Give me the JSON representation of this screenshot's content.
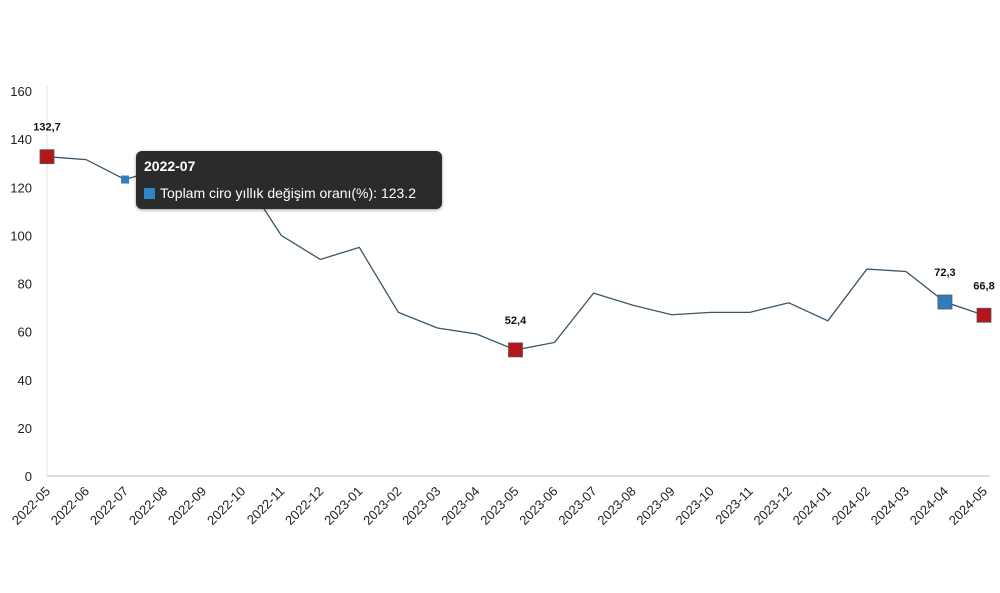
{
  "chart_data": {
    "type": "line",
    "title": "",
    "xlabel": "",
    "ylabel": "",
    "ylim": [
      0,
      160
    ],
    "yticks": [
      0,
      20,
      40,
      60,
      80,
      100,
      120,
      140,
      160
    ],
    "categories": [
      "2022-05",
      "2022-06",
      "2022-07",
      "2022-08",
      "2022-09",
      "2022-10",
      "2022-11",
      "2022-12",
      "2023-01",
      "2023-02",
      "2023-03",
      "2023-04",
      "2023-05",
      "2023-06",
      "2023-07",
      "2023-08",
      "2023-09",
      "2023-10",
      "2023-11",
      "2023-12",
      "2024-01",
      "2024-02",
      "2024-03",
      "2024-04",
      "2024-05"
    ],
    "series": [
      {
        "name": "Toplam ciro yıllık değişim oranı(%)",
        "values": [
          132.7,
          131.5,
          123.2,
          128,
          133.5,
          125,
          100,
          90,
          95,
          68,
          61.5,
          59,
          52.4,
          55.5,
          76,
          71,
          67,
          68,
          68,
          72,
          64.5,
          86,
          85,
          72.3,
          66.8
        ]
      }
    ],
    "highlighted_points": [
      {
        "index": 0,
        "label": "132,7",
        "color": "#b5161b"
      },
      {
        "index": 12,
        "label": "52,4",
        "color": "#b5161b"
      },
      {
        "index": 23,
        "label": "72,3",
        "color": "#2e7dbf"
      },
      {
        "index": 24,
        "label": "66,8",
        "color": "#b5161b"
      }
    ],
    "line_color": "#3a5468",
    "grid": false,
    "legend": "none"
  },
  "tooltip": {
    "title": "2022-07",
    "series_label": "Toplam ciro yıllık değişim oranı(%): 123.2",
    "swatch_color": "#2e86c9"
  }
}
